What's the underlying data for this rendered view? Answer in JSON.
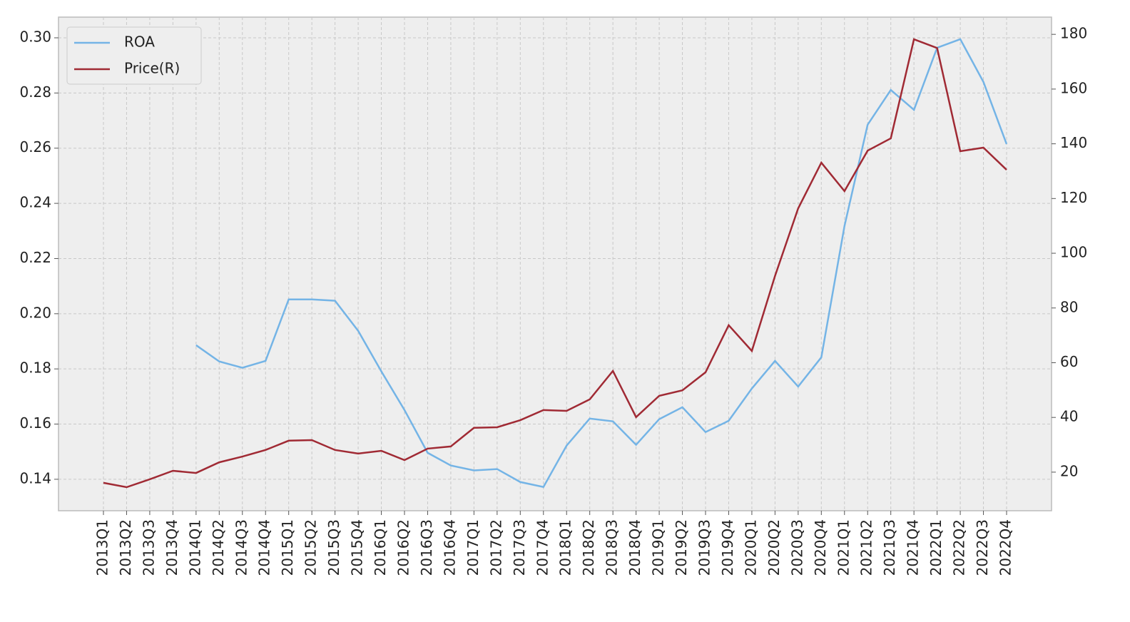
{
  "chart_data": {
    "type": "line",
    "categories": [
      "2013Q1",
      "2013Q2",
      "2013Q3",
      "2013Q4",
      "2014Q1",
      "2014Q2",
      "2014Q3",
      "2014Q4",
      "2015Q1",
      "2015Q2",
      "2015Q3",
      "2015Q4",
      "2016Q1",
      "2016Q2",
      "2016Q3",
      "2016Q4",
      "2017Q1",
      "2017Q2",
      "2017Q3",
      "2017Q4",
      "2018Q1",
      "2018Q2",
      "2018Q3",
      "2018Q4",
      "2019Q1",
      "2019Q2",
      "2019Q3",
      "2019Q4",
      "2020Q1",
      "2020Q2",
      "2020Q3",
      "2020Q4",
      "2021Q1",
      "2021Q2",
      "2021Q3",
      "2021Q4",
      "2022Q1",
      "2022Q2",
      "2022Q3",
      "2022Q4"
    ],
    "series": [
      {
        "name": "ROA",
        "color": "#74b4e6",
        "values": [
          null,
          null,
          null,
          null,
          0.1886,
          0.1827,
          0.1804,
          0.1829,
          0.2052,
          0.2052,
          0.2047,
          0.1938,
          0.1791,
          0.1651,
          0.1496,
          0.145,
          0.1432,
          0.1437,
          0.139,
          0.1372,
          0.1522,
          0.162,
          0.161,
          0.1525,
          0.1618,
          0.1661,
          0.1571,
          0.1612,
          0.1729,
          0.1829,
          0.1736,
          0.1842,
          0.2318,
          0.2685,
          0.2811,
          0.2739,
          0.2964,
          0.2995,
          0.284,
          0.2615
        ]
      },
      {
        "name": "Price(R)",
        "color": "#a02a34",
        "axis": "y2",
        "values": [
          16.1,
          14.5,
          17.4,
          20.5,
          19.7,
          23.6,
          25.7,
          28.1,
          31.5,
          31.7,
          28.1,
          26.8,
          27.8,
          24.4,
          28.6,
          29.4,
          36.2,
          36.4,
          39.0,
          42.7,
          42.4,
          46.6,
          57.0,
          40.1,
          47.9,
          49.9,
          56.5,
          73.7,
          64.3,
          91.7,
          116.4,
          133.1,
          122.7,
          137.5,
          142.0,
          178.2,
          175.0,
          137.3,
          138.6,
          130.5
        ]
      }
    ],
    "ylim": [
      0.1286,
      0.3075
    ],
    "yticks": [
      0.14,
      0.16,
      0.18,
      {
        "value": 0.2,
        "label": "0.20"
      },
      0.22,
      0.24,
      0.26,
      0.28,
      {
        "value": 0.3,
        "label": "0.30"
      }
    ],
    "y2lim": [
      5.9,
      186.3
    ],
    "y2ticks": [
      20,
      40,
      60,
      80,
      100,
      120,
      140,
      160,
      180
    ],
    "grid": true,
    "legend": "upper left"
  }
}
